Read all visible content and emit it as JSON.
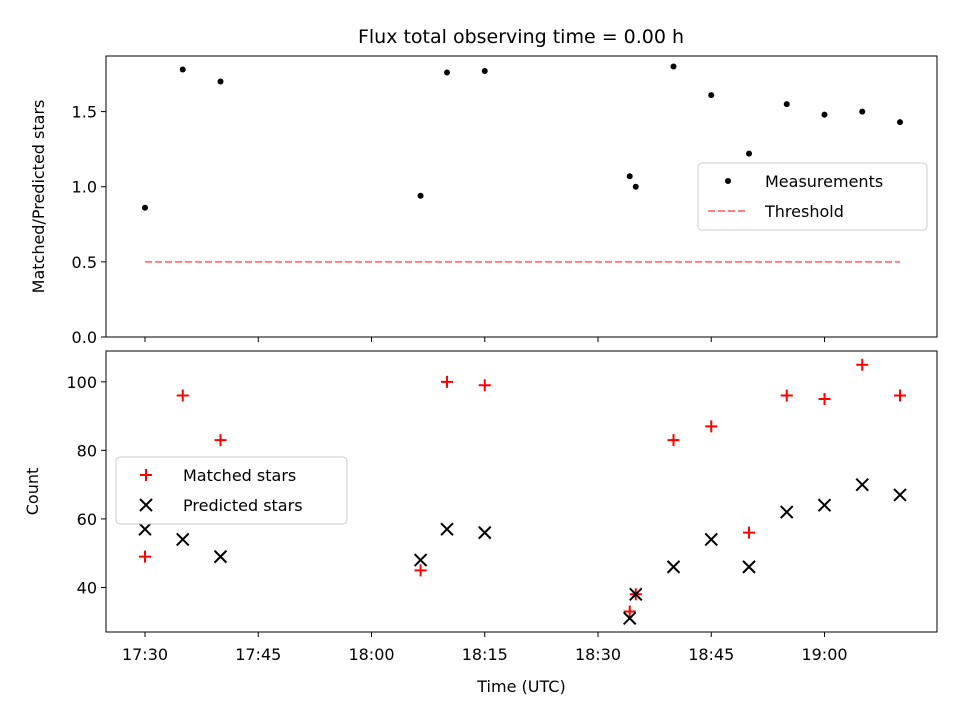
{
  "title": "Flux total observing time = 0.00 h",
  "chart_data": [
    {
      "type": "scatter",
      "ylabel": "Matched/Predicted stars",
      "ylim": [
        0,
        1.87
      ],
      "yticks": [
        "0.0",
        "0.5",
        "1.0",
        "1.5"
      ],
      "ytick_values": [
        0,
        0.5,
        1.0,
        1.5
      ],
      "legend_position": "center-right",
      "series": [
        {
          "name": "Measurements",
          "marker": "dot",
          "color": "#000000",
          "x": [
            "17:30",
            "17:35",
            "17:40",
            "18:06.5",
            "18:10",
            "18:15",
            "18:34.2",
            "18:35",
            "18:40",
            "18:45",
            "18:50",
            "18:55",
            "19:00",
            "19:05",
            "19:10"
          ],
          "y": [
            0.86,
            1.78,
            1.7,
            0.94,
            1.76,
            1.77,
            1.07,
            1.0,
            1.8,
            1.61,
            1.22,
            1.55,
            1.48,
            1.5,
            1.43
          ]
        },
        {
          "name": "Threshold",
          "marker": "dashed-line",
          "color": "#ff8080",
          "x": [
            "17:30",
            "19:10"
          ],
          "y": [
            0.5,
            0.5
          ]
        }
      ]
    },
    {
      "type": "scatter",
      "ylabel": "Count",
      "xlabel": "Time (UTC)",
      "ylim": [
        27,
        109
      ],
      "yticks": [
        "40",
        "60",
        "80",
        "100"
      ],
      "ytick_values": [
        40,
        60,
        80,
        100
      ],
      "xticks": [
        "17:30",
        "17:45",
        "18:00",
        "18:15",
        "18:30",
        "18:45",
        "19:00"
      ],
      "legend_position": "center-left",
      "series": [
        {
          "name": "Matched stars",
          "marker": "plus",
          "color": "#ff0000",
          "x": [
            "17:30",
            "17:35",
            "17:40",
            "18:06.5",
            "18:10",
            "18:15",
            "18:34.2",
            "18:35",
            "18:40",
            "18:45",
            "18:50",
            "18:55",
            "19:00",
            "19:05",
            "19:10"
          ],
          "y": [
            49,
            96,
            83,
            45,
            100,
            99,
            33,
            38,
            83,
            87,
            56,
            96,
            95,
            105,
            96
          ]
        },
        {
          "name": "Predicted stars",
          "marker": "x",
          "color": "#000000",
          "x": [
            "17:30",
            "17:35",
            "17:40",
            "18:06.5",
            "18:10",
            "18:15",
            "18:34.2",
            "18:35",
            "18:40",
            "18:45",
            "18:50",
            "18:55",
            "19:00",
            "19:05",
            "19:10"
          ],
          "y": [
            57,
            54,
            49,
            48,
            57,
            56,
            31,
            38,
            46,
            54,
            46,
            62,
            64,
            70,
            67
          ]
        }
      ]
    }
  ]
}
